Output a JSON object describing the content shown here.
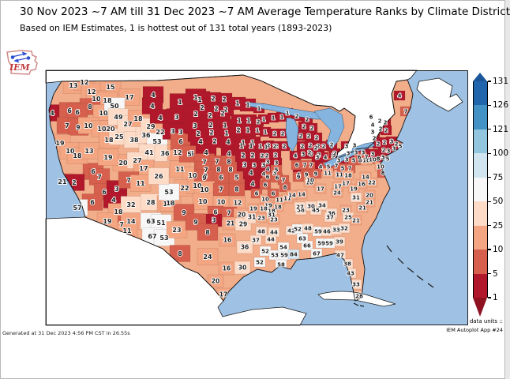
{
  "title": "30 Nov 2023 ~7 AM till 31 Dec 2023 ~7 AM Average Temperature Ranks by Climate District",
  "subtitle": "Based on IEM Estimates, 1 is hottest out of 131 total years (1893-2023)",
  "logo_text": "IEM",
  "footer": {
    "generated": "Generated at 31 Dec 2023 4:56 PM CST in 26.55s",
    "data_units_label": "data units ::",
    "app_label": "IEM Autoplot App #24"
  },
  "colorbar": {
    "ticks": [
      "131",
      "126",
      "121",
      "100",
      "75",
      "50",
      "25",
      "10",
      "5",
      "1"
    ],
    "segments": [
      {
        "max": 131,
        "color": "#2166ac",
        "dots": "light"
      },
      {
        "max": 126,
        "color": "#4292c6",
        "dots": "none"
      },
      {
        "max": 121,
        "color": "#92c5de",
        "dots": "none"
      },
      {
        "max": 100,
        "color": "#d1e5f0",
        "dots": "dark"
      },
      {
        "max": 75,
        "color": "#f7f7f7",
        "dots": "dark"
      },
      {
        "max": 50,
        "color": "#fddbc7",
        "dots": "dark"
      },
      {
        "max": 25,
        "color": "#f4a582",
        "dots": "dark"
      },
      {
        "max": 10,
        "color": "#d6604d",
        "dots": "none"
      },
      {
        "max": 5,
        "color": "#b2182b",
        "dots": "none"
      }
    ],
    "bins": [
      {
        "min": 126,
        "color": "#2166ac"
      },
      {
        "min": 121,
        "color": "#4292c6"
      },
      {
        "min": 100,
        "color": "#92c5de"
      },
      {
        "min": 75,
        "color": "#d1e5f0"
      },
      {
        "min": 50,
        "color": "#f7f7f7"
      },
      {
        "min": 25,
        "color": "#fddbc7"
      },
      {
        "min": 10,
        "color": "#f4a582"
      },
      {
        "min": 5,
        "color": "#d6604d"
      },
      {
        "min": 1,
        "color": "#b2182b"
      }
    ],
    "arrow_top_color": "#1c5699",
    "arrow_bottom_color": "#8e1220"
  },
  "map": {
    "ocean_color": "#9fc2e4",
    "lake_color": "#85b4df",
    "foreign_land_color": "#ffffff",
    "base_land_color": "#f2ad8a",
    "districts": [
      [
        35,
        19,
        13
      ],
      [
        49,
        15,
        12
      ],
      [
        58,
        27,
        12
      ],
      [
        82,
        21,
        15
      ],
      [
        64,
        36,
        10
      ],
      [
        78,
        38,
        18
      ],
      [
        106,
        34,
        17
      ],
      [
        56,
        46,
        8
      ],
      [
        73,
        54,
        10
      ],
      [
        8,
        54,
        4
      ],
      [
        30,
        51,
        6
      ],
      [
        40,
        53,
        6
      ],
      [
        27,
        70,
        7
      ],
      [
        41,
        72,
        9
      ],
      [
        54,
        70,
        10
      ],
      [
        71,
        74,
        10
      ],
      [
        82,
        74,
        20
      ],
      [
        80,
        88,
        18
      ],
      [
        93,
        84,
        25
      ],
      [
        87,
        45,
        50
      ],
      [
        92,
        59,
        49
      ],
      [
        104,
        68,
        27
      ],
      [
        117,
        61,
        18
      ],
      [
        112,
        88,
        38
      ],
      [
        127,
        82,
        36
      ],
      [
        133,
        71,
        29
      ],
      [
        136,
        31,
        4
      ],
      [
        135,
        45,
        4
      ],
      [
        170,
        40,
        1
      ],
      [
        190,
        34,
        1
      ],
      [
        145,
        60,
        4
      ],
      [
        166,
        59,
        3
      ],
      [
        145,
        78,
        22
      ],
      [
        141,
        90,
        53
      ],
      [
        131,
        104,
        41
      ],
      [
        151,
        105,
        36
      ],
      [
        167,
        104,
        12
      ],
      [
        161,
        77,
        3
      ],
      [
        171,
        78,
        3
      ],
      [
        171,
        90,
        6
      ],
      [
        185,
        105,
        5
      ],
      [
        60,
        128,
        6
      ],
      [
        68,
        135,
        7
      ],
      [
        74,
        154,
        6
      ],
      [
        90,
        150,
        3
      ],
      [
        86,
        164,
        4
      ],
      [
        98,
        117,
        20
      ],
      [
        116,
        114,
        27
      ],
      [
        124,
        124,
        17
      ],
      [
        105,
        139,
        7
      ],
      [
        120,
        143,
        11
      ],
      [
        18,
        92,
        19
      ],
      [
        31,
        102,
        10
      ],
      [
        40,
        108,
        18
      ],
      [
        55,
        102,
        13
      ],
      [
        79,
        110,
        19
      ],
      [
        21,
        141,
        21
      ],
      [
        36,
        142,
        2
      ],
      [
        59,
        167,
        6
      ],
      [
        40,
        174,
        57
      ],
      [
        92,
        179,
        18
      ],
      [
        96,
        195,
        7
      ],
      [
        108,
        191,
        14
      ],
      [
        103,
        203,
        11
      ],
      [
        108,
        170,
        32
      ],
      [
        78,
        191,
        19
      ],
      [
        133,
        167,
        28
      ],
      [
        154,
        169,
        18
      ],
      [
        133,
        191,
        63
      ],
      [
        146,
        193,
        51
      ],
      [
        135,
        210,
        67
      ],
      [
        150,
        212,
        53
      ],
      [
        166,
        202,
        23
      ],
      [
        158,
        168,
        18
      ],
      [
        170,
        125,
        11
      ],
      [
        186,
        133,
        10
      ],
      [
        202,
        134,
        9
      ],
      [
        176,
        149,
        22
      ],
      [
        156,
        154,
        53
      ],
      [
        143,
        134,
        26
      ],
      [
        192,
        146,
        10
      ],
      [
        195,
        37,
        1
      ],
      [
        212,
        36,
        2
      ],
      [
        226,
        37,
        2
      ],
      [
        198,
        47,
        2
      ],
      [
        216,
        49,
        2
      ],
      [
        228,
        50,
        2
      ],
      [
        190,
        55,
        2
      ],
      [
        208,
        57,
        2
      ],
      [
        224,
        55,
        2
      ],
      [
        189,
        70,
        3
      ],
      [
        209,
        69,
        2
      ],
      [
        227,
        70,
        1
      ],
      [
        193,
        80,
        2
      ],
      [
        210,
        79,
        2
      ],
      [
        229,
        80,
        1
      ],
      [
        196,
        90,
        4
      ],
      [
        214,
        90,
        2
      ],
      [
        231,
        91,
        4
      ],
      [
        182,
        106,
        5
      ],
      [
        203,
        104,
        4
      ],
      [
        232,
        106,
        4
      ],
      [
        201,
        116,
        7
      ],
      [
        217,
        116,
        7
      ],
      [
        232,
        116,
        8
      ],
      [
        203,
        126,
        7
      ],
      [
        219,
        126,
        8
      ],
      [
        234,
        126,
        8
      ],
      [
        201,
        136,
        9
      ],
      [
        222,
        136,
        6
      ],
      [
        242,
        136,
        5
      ],
      [
        201,
        151,
        10
      ],
      [
        222,
        151,
        7
      ],
      [
        242,
        151,
        8
      ],
      [
        199,
        166,
        10
      ],
      [
        222,
        167,
        10
      ],
      [
        243,
        168,
        12
      ],
      [
        175,
        180,
        9
      ],
      [
        215,
        180,
        6
      ],
      [
        232,
        181,
        7
      ],
      [
        248,
        183,
        20
      ],
      [
        213,
        190,
        3
      ],
      [
        234,
        194,
        21
      ],
      [
        250,
        195,
        29
      ],
      [
        261,
        186,
        31
      ],
      [
        263,
        175,
        19
      ],
      [
        243,
        42,
        1
      ],
      [
        256,
        44,
        1
      ],
      [
        270,
        48,
        1
      ],
      [
        245,
        64,
        1
      ],
      [
        257,
        64,
        1
      ],
      [
        269,
        65,
        2
      ],
      [
        244,
        76,
        2
      ],
      [
        256,
        76,
        1
      ],
      [
        268,
        76,
        1
      ],
      [
        250,
        92,
        1
      ],
      [
        262,
        92,
        1
      ],
      [
        276,
        62,
        1
      ],
      [
        288,
        60,
        1
      ],
      [
        299,
        59,
        1
      ],
      [
        278,
        78,
        1
      ],
      [
        290,
        80,
        2
      ],
      [
        300,
        80,
        2
      ],
      [
        282,
        95,
        2
      ],
      [
        292,
        96,
        2
      ],
      [
        302,
        96,
        2
      ],
      [
        306,
        54,
        1
      ],
      [
        318,
        58,
        2
      ],
      [
        331,
        62,
        2
      ],
      [
        327,
        71,
        2
      ],
      [
        337,
        73,
        2
      ],
      [
        323,
        83,
        2
      ],
      [
        333,
        83,
        2
      ],
      [
        343,
        85,
        2
      ],
      [
        325,
        96,
        2
      ],
      [
        335,
        95,
        2
      ],
      [
        345,
        96,
        2
      ],
      [
        336,
        106,
        3
      ],
      [
        346,
        107,
        2
      ],
      [
        248,
        96,
        1
      ],
      [
        260,
        96,
        1
      ],
      [
        272,
        96,
        1
      ],
      [
        250,
        108,
        2
      ],
      [
        262,
        108,
        2
      ],
      [
        274,
        108,
        2
      ],
      [
        252,
        120,
        3
      ],
      [
        264,
        120,
        3
      ],
      [
        276,
        120,
        3
      ],
      [
        260,
        130,
        4
      ],
      [
        276,
        131,
        4
      ],
      [
        290,
        130,
        3
      ],
      [
        262,
        144,
        4
      ],
      [
        278,
        145,
        6
      ],
      [
        267,
        156,
        6
      ],
      [
        278,
        163,
        10
      ],
      [
        296,
        164,
        11
      ],
      [
        282,
        171,
        19
      ],
      [
        294,
        173,
        18
      ],
      [
        279,
        97,
        1
      ],
      [
        290,
        96,
        2
      ],
      [
        280,
        108,
        2
      ],
      [
        291,
        107,
        2
      ],
      [
        281,
        116,
        3
      ],
      [
        292,
        117,
        3
      ],
      [
        281,
        125,
        4
      ],
      [
        292,
        126,
        5
      ],
      [
        281,
        135,
        6
      ],
      [
        293,
        136,
        6
      ],
      [
        301,
        139,
        7
      ],
      [
        303,
        148,
        8
      ],
      [
        288,
        156,
        6
      ],
      [
        306,
        162,
        11
      ],
      [
        316,
        108,
        4
      ],
      [
        326,
        106,
        3
      ],
      [
        334,
        104,
        2
      ],
      [
        318,
        120,
        6
      ],
      [
        328,
        120,
        7
      ],
      [
        336,
        120,
        7
      ],
      [
        320,
        132,
        4
      ],
      [
        330,
        132,
        9
      ],
      [
        334,
        142,
        10
      ],
      [
        342,
        98,
        2
      ],
      [
        352,
        96,
        2
      ],
      [
        362,
        94,
        2
      ],
      [
        344,
        110,
        3
      ],
      [
        354,
        110,
        4
      ],
      [
        364,
        108,
        5
      ],
      [
        348,
        122,
        4
      ],
      [
        358,
        122,
        5
      ],
      [
        368,
        121,
        7
      ],
      [
        372,
        132,
        11
      ],
      [
        276,
        175,
        18
      ],
      [
        286,
        178,
        18
      ],
      [
        286,
        183,
        31
      ],
      [
        273,
        187,
        23
      ],
      [
        289,
        189,
        23
      ],
      [
        273,
        204,
        48
      ],
      [
        289,
        205,
        44
      ],
      [
        266,
        215,
        37
      ],
      [
        285,
        214,
        44
      ],
      [
        190,
        192,
        9
      ],
      [
        205,
        205,
        8
      ],
      [
        170,
        232,
        8
      ],
      [
        205,
        236,
        24
      ],
      [
        230,
        215,
        16
      ],
      [
        252,
        224,
        36
      ],
      [
        229,
        251,
        16
      ],
      [
        249,
        250,
        30
      ],
      [
        215,
        267,
        20
      ],
      [
        225,
        284,
        17
      ],
      [
        278,
        229,
        52
      ],
      [
        271,
        243,
        52
      ],
      [
        290,
        234,
        53
      ],
      [
        302,
        234,
        59
      ],
      [
        298,
        246,
        58
      ],
      [
        311,
        203,
        42
      ],
      [
        319,
        201,
        52
      ],
      [
        301,
        224,
        54
      ],
      [
        314,
        233,
        84
      ],
      [
        323,
        177,
        36
      ],
      [
        331,
        222,
        66
      ],
      [
        325,
        213,
        63
      ],
      [
        343,
        232,
        67
      ],
      [
        345,
        204,
        59
      ],
      [
        332,
        200,
        48
      ],
      [
        342,
        177,
        45
      ],
      [
        356,
        204,
        46
      ],
      [
        368,
        202,
        33
      ],
      [
        378,
        200,
        32
      ],
      [
        372,
        217,
        39
      ],
      [
        349,
        219,
        59
      ],
      [
        359,
        219,
        59
      ],
      [
        373,
        234,
        47
      ],
      [
        382,
        245,
        38
      ],
      [
        386,
        257,
        43
      ],
      [
        393,
        271,
        33
      ],
      [
        397,
        286,
        28
      ],
      [
        312,
        158,
        14
      ],
      [
        324,
        157,
        14
      ],
      [
        322,
        173,
        27
      ],
      [
        336,
        172,
        30
      ],
      [
        350,
        171,
        34
      ],
      [
        369,
        155,
        24
      ],
      [
        362,
        181,
        36
      ],
      [
        380,
        177,
        23
      ],
      [
        383,
        186,
        25
      ],
      [
        360,
        186,
        37
      ],
      [
        393,
        190,
        21
      ],
      [
        401,
        174,
        21
      ],
      [
        410,
        167,
        21
      ],
      [
        380,
        143,
        17
      ],
      [
        390,
        150,
        19
      ],
      [
        400,
        144,
        16
      ],
      [
        393,
        161,
        31
      ],
      [
        370,
        147,
        17
      ],
      [
        410,
        158,
        20
      ],
      [
        335,
        139,
        10
      ],
      [
        320,
        135,
        9
      ],
      [
        348,
        150,
        17
      ],
      [
        342,
        131,
        9
      ],
      [
        357,
        130,
        11
      ],
      [
        371,
        114,
        3
      ],
      [
        381,
        113,
        3
      ],
      [
        390,
        114,
        5
      ],
      [
        398,
        114,
        8
      ],
      [
        406,
        114,
        10
      ],
      [
        414,
        113,
        10
      ],
      [
        421,
        112,
        8
      ],
      [
        376,
        124,
        5
      ],
      [
        385,
        124,
        7
      ],
      [
        366,
        105,
        2
      ],
      [
        383,
        133,
        18
      ],
      [
        405,
        135,
        14
      ],
      [
        413,
        142,
        22
      ],
      [
        424,
        122,
        10
      ],
      [
        427,
        130,
        8
      ],
      [
        381,
        96,
        3
      ],
      [
        391,
        95,
        3
      ],
      [
        383,
        105,
        3
      ],
      [
        393,
        104,
        3
      ],
      [
        402,
        104,
        3
      ],
      [
        397,
        110,
        6
      ],
      [
        406,
        110,
        7
      ],
      [
        414,
        106,
        3
      ],
      [
        412,
        59,
        6
      ],
      [
        414,
        69,
        4
      ],
      [
        414,
        78,
        3
      ],
      [
        416,
        86,
        2
      ],
      [
        427,
        110,
        3
      ],
      [
        433,
        112,
        5
      ],
      [
        448,
        32,
        4
      ],
      [
        456,
        52,
        7
      ],
      [
        423,
        64,
        2
      ],
      [
        430,
        66,
        2
      ],
      [
        424,
        74,
        2
      ],
      [
        431,
        76,
        2
      ],
      [
        421,
        93,
        2
      ],
      [
        429,
        91,
        2
      ],
      [
        438,
        90,
        3
      ],
      [
        444,
        93,
        2
      ],
      [
        449,
        96,
        5
      ],
      [
        428,
        101,
        2
      ],
      [
        434,
        102,
        3
      ],
      [
        441,
        99,
        3
      ]
    ]
  }
}
